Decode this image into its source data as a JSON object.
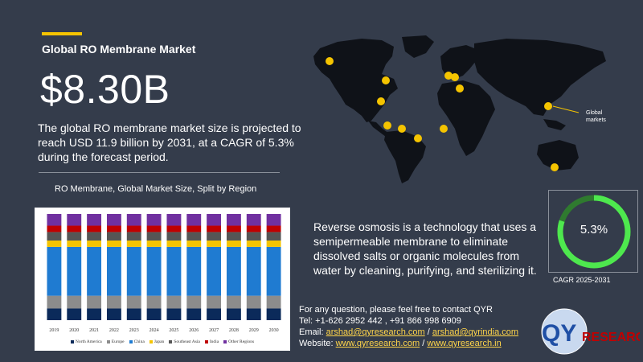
{
  "header": {
    "title": "Global RO Membrane Market",
    "big_value": "$8.30B",
    "summary": "The global RO membrane market size is projected to reach USD 11.9 billion by 2031, at a CAGR of 5.3% during the forecast period."
  },
  "chart_title": "RO Membrane, Global Market Size, Split by Region",
  "chart_data": {
    "type": "bar",
    "stacked": true,
    "normalized": true,
    "categories": [
      "2019",
      "2020",
      "2021",
      "2022",
      "2023",
      "2024",
      "2025",
      "2026",
      "2027",
      "2028",
      "2029",
      "2030"
    ],
    "series": [
      {
        "name": "North America",
        "color": "#0b2a5a",
        "values": [
          0.11,
          0.11,
          0.11,
          0.11,
          0.11,
          0.11,
          0.11,
          0.11,
          0.11,
          0.11,
          0.11,
          0.11
        ]
      },
      {
        "name": "Europe",
        "color": "#8c8c8c",
        "values": [
          0.12,
          0.12,
          0.12,
          0.12,
          0.12,
          0.12,
          0.12,
          0.12,
          0.12,
          0.12,
          0.12,
          0.12
        ]
      },
      {
        "name": "China",
        "color": "#1f7bd1",
        "values": [
          0.46,
          0.46,
          0.46,
          0.46,
          0.46,
          0.46,
          0.46,
          0.46,
          0.46,
          0.46,
          0.46,
          0.46
        ]
      },
      {
        "name": "Japan",
        "color": "#f5c400",
        "values": [
          0.06,
          0.06,
          0.06,
          0.06,
          0.06,
          0.06,
          0.06,
          0.06,
          0.06,
          0.06,
          0.06,
          0.06
        ]
      },
      {
        "name": "Southeast Asia",
        "color": "#555555",
        "values": [
          0.08,
          0.08,
          0.08,
          0.08,
          0.08,
          0.08,
          0.08,
          0.08,
          0.08,
          0.08,
          0.08,
          0.08
        ]
      },
      {
        "name": "India",
        "color": "#c00000",
        "values": [
          0.06,
          0.06,
          0.06,
          0.06,
          0.06,
          0.06,
          0.06,
          0.06,
          0.06,
          0.06,
          0.06,
          0.06
        ]
      },
      {
        "name": "Other Regions",
        "color": "#7030a0",
        "values": [
          0.11,
          0.11,
          0.11,
          0.11,
          0.11,
          0.11,
          0.11,
          0.11,
          0.11,
          0.11,
          0.11,
          0.11
        ]
      }
    ],
    "ylim": [
      0,
      1
    ],
    "grid": false,
    "legend_position": "bottom"
  },
  "map_label": "Global markets",
  "description": "Reverse osmosis is a technology that uses a semipermeable membrane to eliminate dissolved salts or organic molecules from water by cleaning, purifying, and sterilizing it.",
  "gauge": {
    "value_text": "5.3%",
    "caption": "CAGR 2025-2031",
    "ring_color": "#4ee84e",
    "track_color": "#2f7a2f"
  },
  "contact": {
    "line1": "For any question, please feel free to contact QYR",
    "tel": "Tel: +1-626 2952 442 , +91 866 998 6909",
    "email_label": "Email: ",
    "email1": "arshad@qyresearch.com",
    "sep": " / ",
    "email2": "arshad@qyrindia.com",
    "website_label": "Website: ",
    "web1": "www.qyresearch.com",
    "web2": "www.qyresearch.in"
  },
  "logo": {
    "text_qy": "QY",
    "text_rest": "RESEARCH"
  }
}
